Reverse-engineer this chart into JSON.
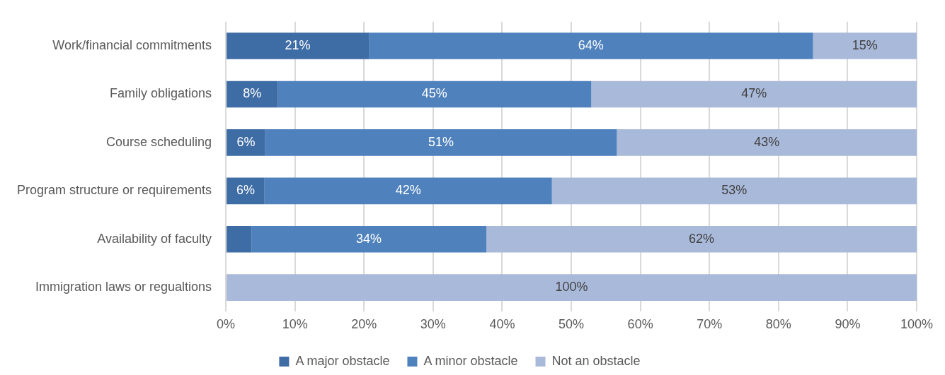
{
  "chart_data": {
    "type": "bar",
    "orientation": "horizontal",
    "stacked": true,
    "categories": [
      "Work/financial commitments",
      "Family obligations",
      "Course scheduling",
      "Program structure or requirements",
      "Availability of faculty",
      "Immigration laws or regualtions"
    ],
    "series": [
      {
        "name": "A major obstacle",
        "color": "#3e6ca4",
        "values": [
          20.7,
          7.5,
          5.7,
          5.6,
          3.7,
          0
        ],
        "value_labels": [
          "21%",
          "8%",
          "6%",
          "6%",
          null,
          null
        ]
      },
      {
        "name": "A minor obstacle",
        "color": "#4f81bd",
        "values": [
          64.3,
          45.4,
          50.9,
          41.6,
          34,
          0
        ],
        "value_labels": [
          "64%",
          "45%",
          "51%",
          "42%",
          "34%",
          null
        ]
      },
      {
        "name": "Not an obstacle",
        "color": "#a9b9d9",
        "values": [
          15,
          47.1,
          43.4,
          52.8,
          62.3,
          100
        ],
        "value_labels": [
          "15%",
          "47%",
          "43%",
          "53%",
          "62%",
          "100%"
        ]
      }
    ],
    "xlim": [
      0,
      100
    ],
    "xticks": [
      {
        "value": 0,
        "label": "0%"
      },
      {
        "value": 10,
        "label": "10%"
      },
      {
        "value": 20,
        "label": "20%"
      },
      {
        "value": 30,
        "label": "30%"
      },
      {
        "value": 40,
        "label": "40%"
      },
      {
        "value": 50,
        "label": "50%"
      },
      {
        "value": 60,
        "label": "60%"
      },
      {
        "value": 70,
        "label": "70%"
      },
      {
        "value": 80,
        "label": "80%"
      },
      {
        "value": 90,
        "label": "90%"
      },
      {
        "value": 100,
        "label": "100%"
      }
    ],
    "grid": "x",
    "legend": "bottom"
  }
}
